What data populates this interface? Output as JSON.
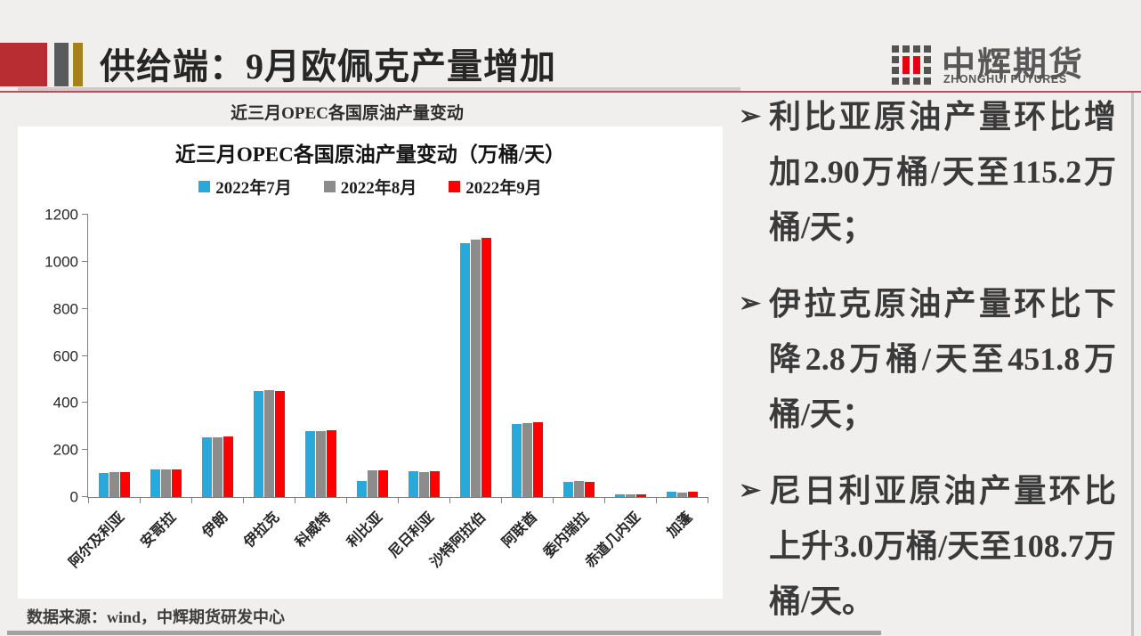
{
  "header": {
    "title": "供给端：9月欧佩克产量增加"
  },
  "logo": {
    "name": "中辉期货",
    "subtitle": "ZHONGHUI FUTURES",
    "red": "#e60012",
    "gray": "#555253"
  },
  "chart_caption": "近三月OPEC各国原油产量变动",
  "chart_data": {
    "type": "bar",
    "title": "近三月OPEC各国原油产量变动（万桶/天）",
    "xlabel": "",
    "ylabel": "",
    "unit": "万桶/天",
    "ylim": [
      0,
      1200
    ],
    "ytick_step": 200,
    "grid": false,
    "legend_position": "top",
    "categories": [
      "阿尔及利亚",
      "安哥拉",
      "伊朗",
      "伊拉克",
      "科威特",
      "利比亚",
      "尼日利亚",
      "沙特阿拉伯",
      "阿联酋",
      "委内瑞拉",
      "赤道几内亚",
      "加蓬"
    ],
    "series": [
      {
        "name": "2022年7月",
        "color": "#29a8dc",
        "values": [
          104,
          119,
          255,
          452,
          280,
          70,
          108,
          1078,
          312,
          66,
          12,
          21
        ]
      },
      {
        "name": "2022年8月",
        "color": "#8c8c8c",
        "values": [
          105,
          117,
          255,
          454.6,
          282,
          112.3,
          105.7,
          1095,
          315,
          68,
          10,
          19
        ]
      },
      {
        "name": "2022年9月",
        "color": "#fe0000",
        "values": [
          105,
          119,
          256,
          451.8,
          285,
          115.2,
          108.7,
          1103,
          319,
          66,
          11,
          22
        ]
      }
    ]
  },
  "source": "数据来源：wind，中辉期货研发中心",
  "bullets": [
    {
      "marker": "➢",
      "text": "利比亚原油产量环比增加2.90万桶/天至115.2万桶/天；"
    },
    {
      "marker": "➢",
      "text": "伊拉克原油产量环比下降2.8万桶/天至451.8万桶/天；"
    },
    {
      "marker": "➢",
      "text": "尼日利亚原油产量环比上升3.0万桶/天至108.7万桶/天。"
    }
  ]
}
